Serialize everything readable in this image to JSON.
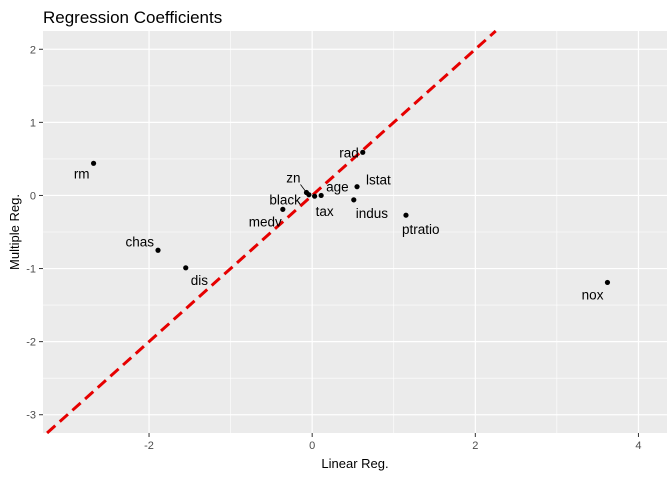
{
  "chart_data": {
    "type": "scatter",
    "title": "Regression Coefficients",
    "xlabel": "Linear Reg.",
    "ylabel": "Multiple Reg.",
    "xlim": [
      -3.3,
      4.35
    ],
    "ylim": [
      -3.25,
      2.25
    ],
    "x_ticks": [
      -2,
      0,
      2,
      4
    ],
    "y_ticks": [
      -3,
      -2,
      -1,
      0,
      1,
      2
    ],
    "x_tick_labels": [
      "-2",
      "0",
      "2",
      "4"
    ],
    "y_tick_labels": [
      "-3",
      "-2",
      "-1",
      "0",
      "1",
      "2"
    ],
    "grid": true,
    "background": "#ebebeb",
    "grid_color": "#ffffff",
    "point_color": "#000000",
    "reference_line": {
      "slope": 1,
      "intercept": 0,
      "style": "dashed",
      "color": "#e60000"
    },
    "points": [
      {
        "label": "rm",
        "x": -2.68,
        "y": 0.44
      },
      {
        "label": "chas",
        "x": -1.89,
        "y": -0.75
      },
      {
        "label": "dis",
        "x": -1.55,
        "y": -0.99
      },
      {
        "label": "medv",
        "x": -0.36,
        "y": -0.19
      },
      {
        "label": "black",
        "x": -0.04,
        "y": 0.01
      },
      {
        "label": "zn",
        "x": -0.07,
        "y": 0.04
      },
      {
        "label": "tax",
        "x": 0.03,
        "y": -0.01
      },
      {
        "label": "age",
        "x": 0.11,
        "y": 0.0
      },
      {
        "label": "indus",
        "x": 0.51,
        "y": -0.06
      },
      {
        "label": "lstat",
        "x": 0.55,
        "y": 0.12
      },
      {
        "label": "rad",
        "x": 0.62,
        "y": 0.59
      },
      {
        "label": "ptratio",
        "x": 1.15,
        "y": -0.27
      },
      {
        "label": "nox",
        "x": 3.62,
        "y": -1.19
      }
    ]
  }
}
